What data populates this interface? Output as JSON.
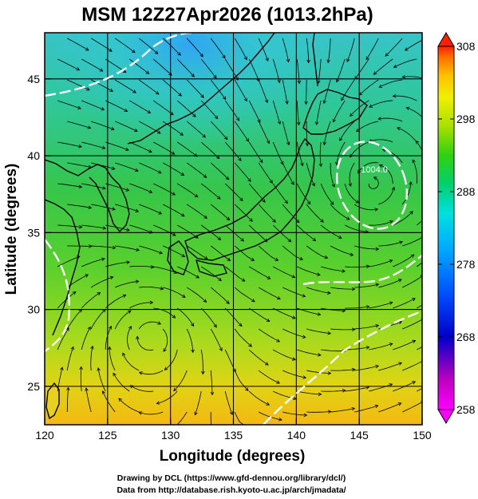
{
  "title": "MSM 12Z27Apr2026 (1013.2hPa)",
  "map": {
    "xlabel": "Longitude (degrees)",
    "ylabel": "Latitude  (degrees)",
    "xlim": [
      120,
      150
    ],
    "ylim": [
      22.5,
      48
    ],
    "xticks": [
      "120",
      "125",
      "130",
      "135",
      "140",
      "145",
      "150"
    ],
    "xtick_values": [
      120,
      125,
      130,
      135,
      140,
      145,
      150
    ],
    "yticks": [
      "25",
      "30",
      "35",
      "40",
      "45"
    ],
    "ytick_values": [
      25,
      30,
      35,
      40,
      45
    ],
    "grid": true,
    "field": "temperature shading with wind streamlines",
    "contour_label": "1004.0",
    "contour_label_position": [
      146.2,
      38.9
    ],
    "contour_color": "#ffffff"
  },
  "colorbar": {
    "range": [
      258,
      308
    ],
    "labels": [
      "308",
      "298",
      "288",
      "278",
      "268",
      "258"
    ],
    "label_values": [
      308,
      298,
      288,
      278,
      268,
      258
    ],
    "colors": [
      "#ff00ff",
      "#c000c0",
      "#0000c8",
      "#0050ff",
      "#00a8ff",
      "#00e0e0",
      "#00d070",
      "#30d010",
      "#a8e000",
      "#f0f000",
      "#ffc000",
      "#ff7000",
      "#ff2000"
    ]
  },
  "credits": {
    "line1": "Drawing by DCL (https://www.gfd-dennou.org/library/dcl/)",
    "line2": "Data from http://database.rish.kyoto-u.ac.jp/arch/jmadata/"
  }
}
